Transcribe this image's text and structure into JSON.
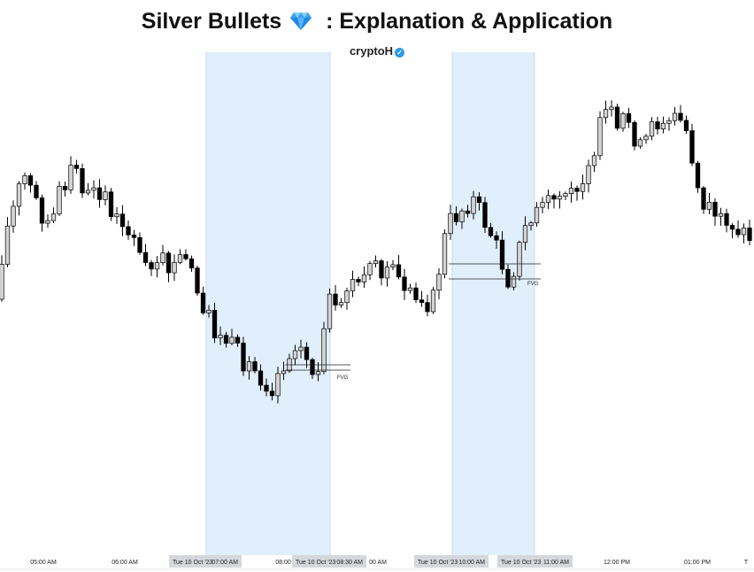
{
  "title": "Silver Bullets",
  "title_suffix": ": Explanation & Application",
  "title_icon": "gem-icon",
  "author": "cryptoH",
  "author_badge_icon": "verified-check-icon",
  "colors": {
    "session_shade": "#e1eefc",
    "bull_fill": "#d4d4d4",
    "bear_fill": "#000000",
    "wick": "#000000",
    "gem": "#1e88e5"
  },
  "chart_data": {
    "type": "candlestick",
    "x_ticks": [
      "05:00 AM",
      "06:00 AM",
      "08:00",
      "00 AM",
      "12:00 PM",
      "01:00 PM",
      "T"
    ],
    "session_labels": [
      [
        "Tue 10 Oct '23",
        "07:00 AM"
      ],
      [
        "Tue 10 Oct '23",
        "08:30 AM"
      ],
      [
        "Tue 10 Oct '23",
        "10:00 AM"
      ],
      [
        "Tue 10 Oct '23",
        "11:00 AM"
      ]
    ],
    "sessions": [
      {
        "start": "07:00 AM",
        "end": "08:30 AM"
      },
      {
        "start": "10:00 AM",
        "end": "11:00 AM"
      }
    ],
    "annotations": [
      {
        "label": "FVG",
        "after": "08:30 AM"
      },
      {
        "label": "FVG",
        "after": "11:00 AM"
      }
    ],
    "candle_count": 132,
    "price_axis": "hidden",
    "grid": false
  }
}
